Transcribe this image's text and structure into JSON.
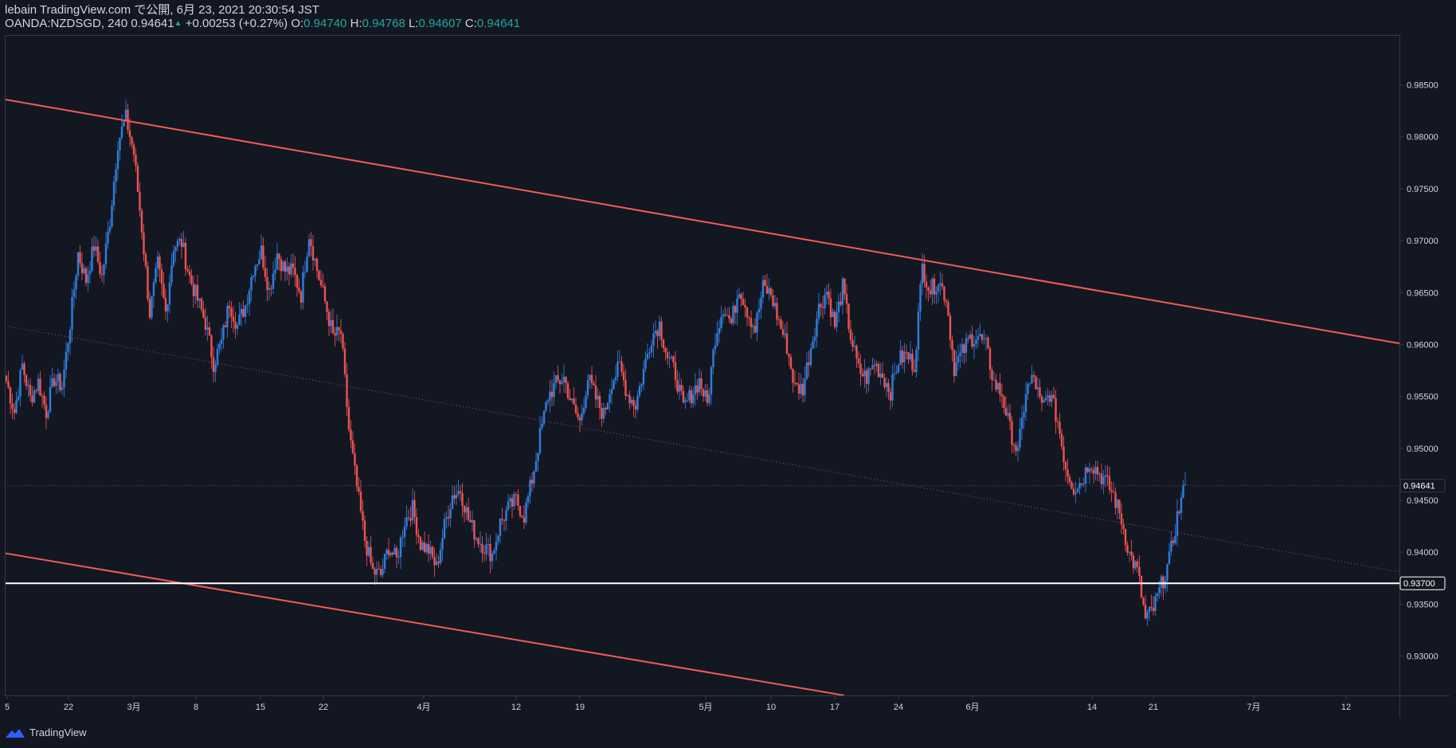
{
  "header": {
    "publisher": "lebain TradingView.com で公開, 6月 23, 2021 20:30:54 JST",
    "symbol": "OANDA:NZDSGD, 240",
    "last": "0.94641",
    "arrow": "▲",
    "change": "+0.00253 (+0.27%)",
    "o_label": "O:",
    "o_value": "0.94740",
    "h_label": "H:",
    "h_value": "0.94768",
    "l_label": "L:",
    "l_value": "0.94607",
    "c_label": "C:",
    "c_value": "0.94641"
  },
  "footer": {
    "brand": "TradingView"
  },
  "colors": {
    "background": "#131722",
    "up": "#2f7fde",
    "down": "#ef5350",
    "channel": "#f25c54",
    "support": "#ffffff",
    "price_tag_bg": "#131722",
    "price_tag_text": "#ffffff",
    "axis_text": "#d1d4dc",
    "border": "#363a45"
  },
  "chart_data": {
    "type": "candlestick",
    "ylim": [
      0.9262,
      0.9898
    ],
    "y_ticks": [
      "0.98500",
      "0.98000",
      "0.97500",
      "0.97000",
      "0.96500",
      "0.96000",
      "0.95500",
      "0.95000",
      "0.94500",
      "0.94000",
      "0.93500",
      "0.93000"
    ],
    "x_ticks": [
      "5",
      "22",
      "3月",
      "8",
      "15",
      "22",
      "4月",
      "12",
      "19",
      "5月",
      "10",
      "17",
      "24",
      "6月",
      "14",
      "21",
      "7月",
      "12"
    ],
    "current_price": {
      "value": 0.94641,
      "label": "0.94641"
    },
    "support_level": {
      "value": 0.937,
      "label": "0.93700"
    },
    "channel_upper": {
      "start": 0.9836,
      "end": 0.9601
    },
    "channel_lower": {
      "start": 0.9399,
      "end": 0.9262
    },
    "channel_mid": {
      "start": 0.9618,
      "end": 0.9381
    },
    "close_path": [
      0.9565,
      0.9535,
      0.958,
      0.9548,
      0.9564,
      0.9535,
      0.9567,
      0.956,
      0.962,
      0.9688,
      0.9662,
      0.9695,
      0.9665,
      0.972,
      0.9795,
      0.9818,
      0.9784,
      0.9712,
      0.963,
      0.9677,
      0.9631,
      0.9695,
      0.9698,
      0.9665,
      0.9643,
      0.9621,
      0.9582,
      0.9602,
      0.9641,
      0.9618,
      0.9638,
      0.9674,
      0.969,
      0.9652,
      0.9688,
      0.9671,
      0.967,
      0.9648,
      0.9707,
      0.9672,
      0.9641,
      0.9608,
      0.9611,
      0.9518,
      0.9462,
      0.9412,
      0.9381,
      0.9378,
      0.9405,
      0.9392,
      0.943,
      0.9442,
      0.9408,
      0.9402,
      0.9385,
      0.9425,
      0.9455,
      0.946,
      0.9432,
      0.9415,
      0.9405,
      0.9398,
      0.9428,
      0.9442,
      0.945,
      0.9435,
      0.947,
      0.9512,
      0.955,
      0.9562,
      0.9568,
      0.9542,
      0.9525,
      0.9568,
      0.9548,
      0.9532,
      0.9565,
      0.9578,
      0.9552,
      0.9542,
      0.9575,
      0.9608,
      0.962,
      0.9588,
      0.9572,
      0.9538,
      0.9552,
      0.9565,
      0.9542,
      0.9608,
      0.9637,
      0.962,
      0.9656,
      0.9633,
      0.9615,
      0.9655,
      0.9648,
      0.9622,
      0.9598,
      0.9558,
      0.9558,
      0.9598,
      0.9635,
      0.9652,
      0.9618,
      0.9655,
      0.9608,
      0.9575,
      0.9568,
      0.9582,
      0.957,
      0.9555,
      0.9585,
      0.959,
      0.958,
      0.9675,
      0.9652,
      0.9662,
      0.9645,
      0.9578,
      0.9592,
      0.9606,
      0.9608,
      0.9598,
      0.9563,
      0.9552,
      0.9518,
      0.9495,
      0.9555,
      0.9568,
      0.9538,
      0.9553,
      0.9526,
      0.9482,
      0.9462,
      0.9468,
      0.9488,
      0.9478,
      0.9468,
      0.9455,
      0.9431,
      0.9398,
      0.9382,
      0.9335,
      0.9345,
      0.9368,
      0.9392,
      0.9434,
      0.9465
    ],
    "candles_per_week": 30
  }
}
